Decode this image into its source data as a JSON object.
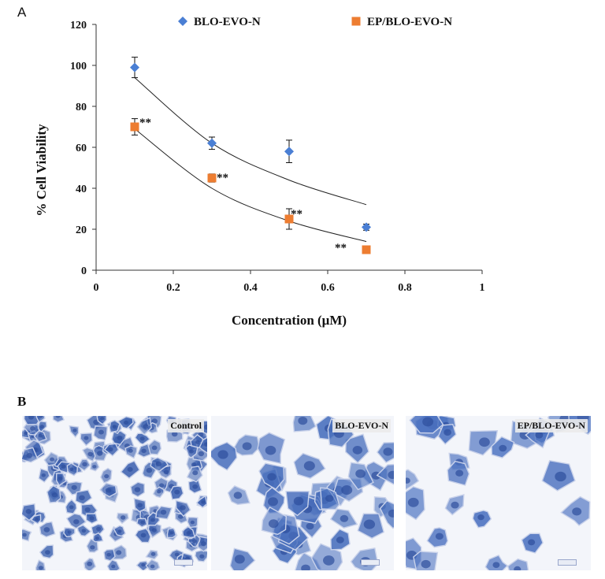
{
  "panel_labels": {
    "a": "A",
    "b": "B"
  },
  "legend": [
    {
      "name": "BLO-EVO-N",
      "color": "#4a7fd4",
      "marker": "diamond"
    },
    {
      "name": "EP/BLO-EVO-N",
      "color": "#ed7d31",
      "marker": "square"
    }
  ],
  "chart_data": {
    "type": "scatter",
    "xlabel": "Concentration (μM)",
    "ylabel": "% Cell Viability",
    "xlim": [
      0,
      1
    ],
    "ylim": [
      0,
      120
    ],
    "xticks": [
      "0",
      "0.2",
      "0.4",
      "0.6",
      "0.8",
      "1"
    ],
    "yticks": [
      "0",
      "20",
      "40",
      "60",
      "80",
      "100",
      "120"
    ],
    "grid": false,
    "legend_position": "top",
    "series": [
      {
        "name": "BLO-EVO-N",
        "color": "#4a7fd4",
        "x": [
          0.1,
          0.3,
          0.5,
          0.7
        ],
        "y": [
          99,
          62,
          58,
          21
        ],
        "err": [
          5,
          3,
          5.5,
          1.5
        ],
        "fit_y": [
          94,
          62,
          44,
          32
        ]
      },
      {
        "name": "EP/BLO-EVO-N",
        "color": "#ed7d31",
        "x": [
          0.1,
          0.3,
          0.5,
          0.7
        ],
        "y": [
          70,
          45,
          25,
          10
        ],
        "err": [
          4,
          2,
          5,
          0
        ],
        "fit_y": [
          69,
          40,
          24,
          14
        ]
      }
    ],
    "annotations": [
      "**",
      "**",
      "**",
      "**"
    ]
  },
  "micrographs": [
    {
      "label": "Control",
      "density": "high",
      "cell_color": "#3e62b0"
    },
    {
      "label": "BLO-EVO-N",
      "density": "medium",
      "cell_color": "#4a70bd"
    },
    {
      "label": "EP/BLO-EVO-N",
      "density": "low",
      "cell_color": "#4c72c0"
    }
  ]
}
